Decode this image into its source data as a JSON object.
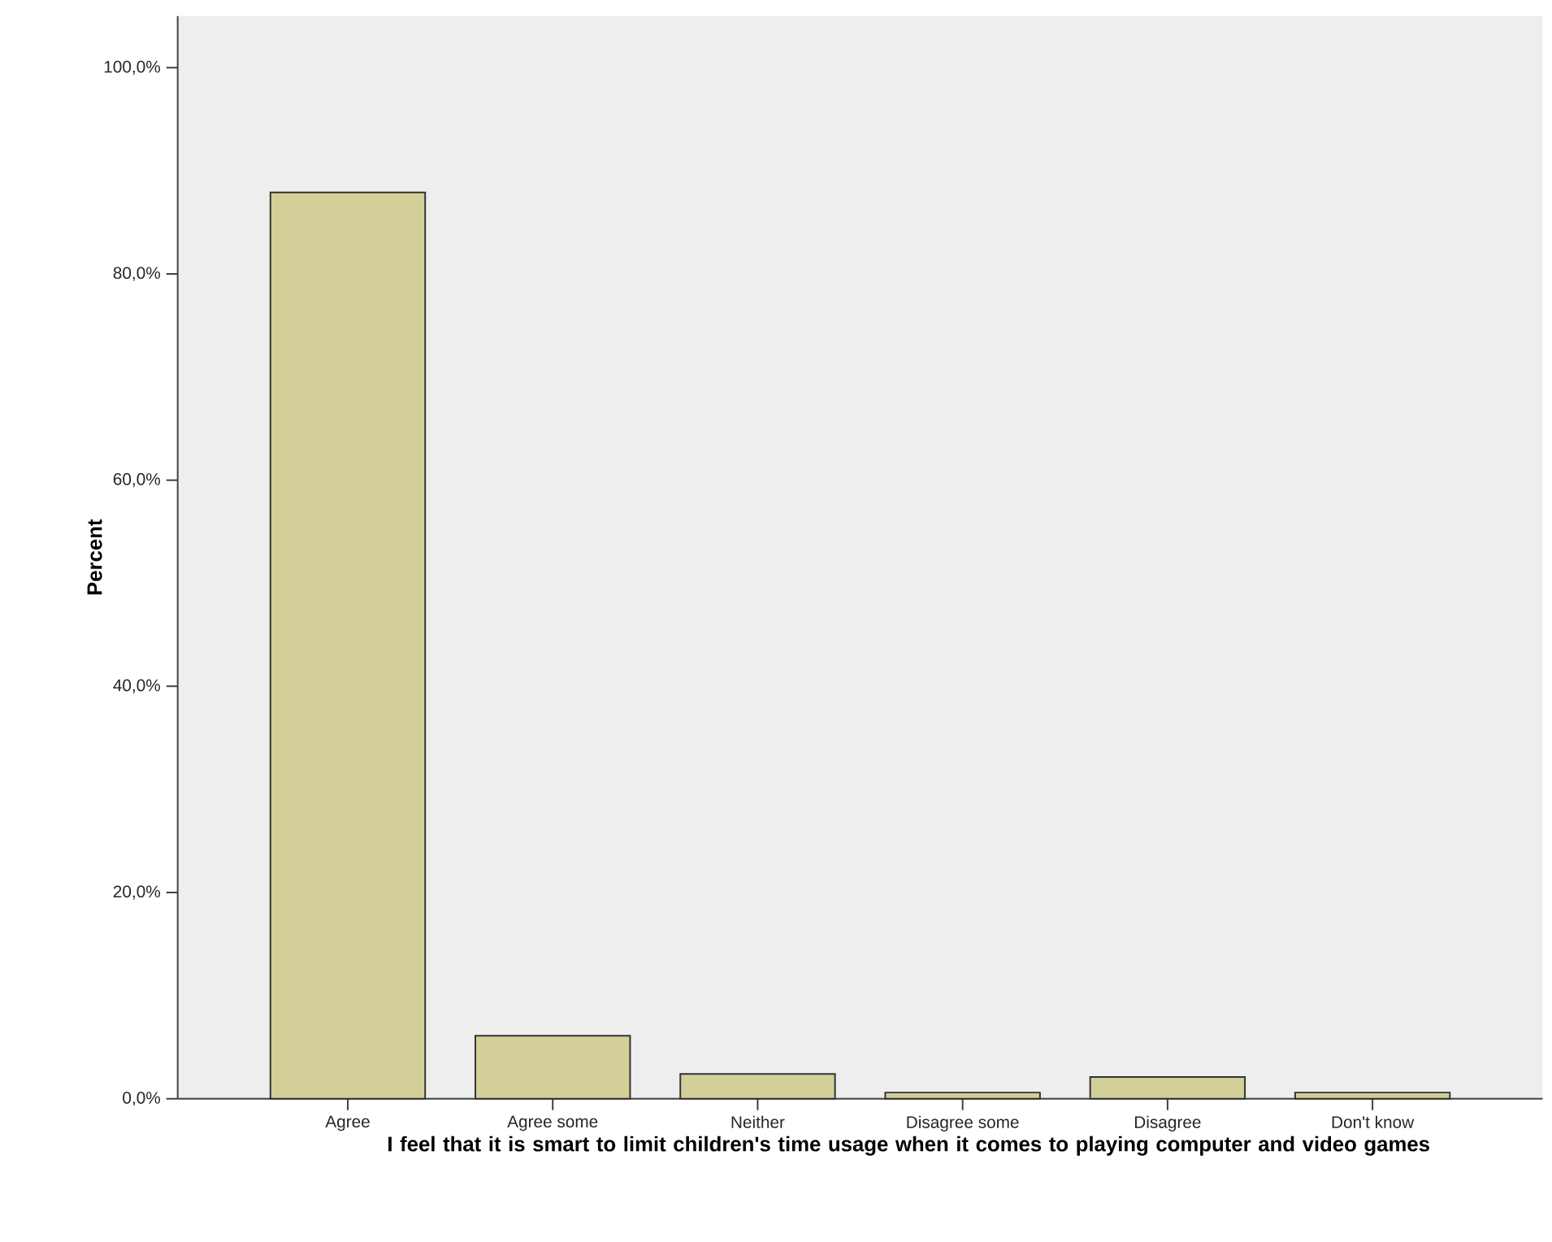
{
  "chart_data": {
    "type": "bar",
    "xlabel": "I feel that it is smart to limit children's time usage when it comes to playing computer and video games",
    "ylabel": "Percent",
    "categories": [
      "Agree",
      "Agree some",
      "Neither",
      "Disagree some",
      "Disagree",
      "Don't know"
    ],
    "values": [
      87.9,
      6.1,
      2.4,
      0.6,
      2.1,
      0.6
    ],
    "color": "#d3cf98",
    "ylim": [
      0,
      105
    ],
    "yticks": [
      {
        "value": 0,
        "label": "0,0%"
      },
      {
        "value": 20,
        "label": "20,0%"
      },
      {
        "value": 40,
        "label": "40,0%"
      },
      {
        "value": 60,
        "label": "60,0%"
      },
      {
        "value": 80,
        "label": "80,0%"
      },
      {
        "value": 100,
        "label": "100,0%"
      }
    ],
    "grid": false
  }
}
